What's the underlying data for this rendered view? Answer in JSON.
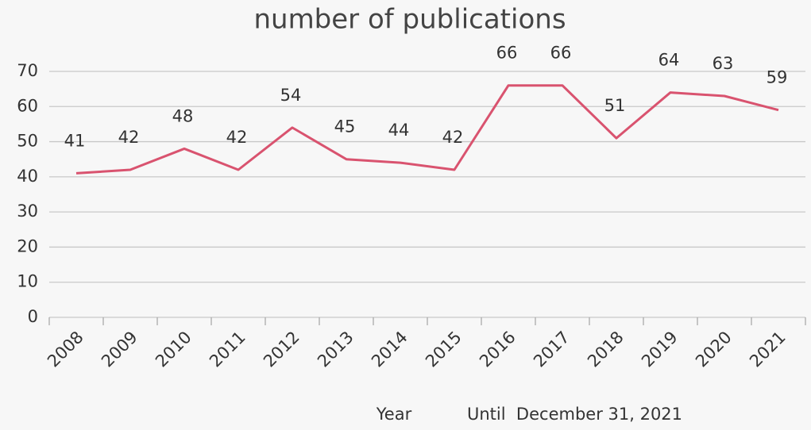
{
  "chart_data": {
    "type": "line",
    "title": "number of publications",
    "categories": [
      "2008",
      "2009",
      "2010",
      "2011",
      "2012",
      "2013",
      "2014",
      "2015",
      "2016",
      "2017",
      "2018",
      "2019",
      "2020",
      "2021"
    ],
    "values": [
      41,
      42,
      48,
      42,
      54,
      45,
      44,
      42,
      66,
      66,
      51,
      64,
      63,
      59
    ],
    "color": "#d9536f",
    "ylim": [
      0,
      70
    ],
    "yticks": [
      0,
      10,
      20,
      30,
      40,
      50,
      60,
      70
    ],
    "grid": true,
    "x_label": "Year",
    "annotation": "Until  December 31, 2021"
  }
}
